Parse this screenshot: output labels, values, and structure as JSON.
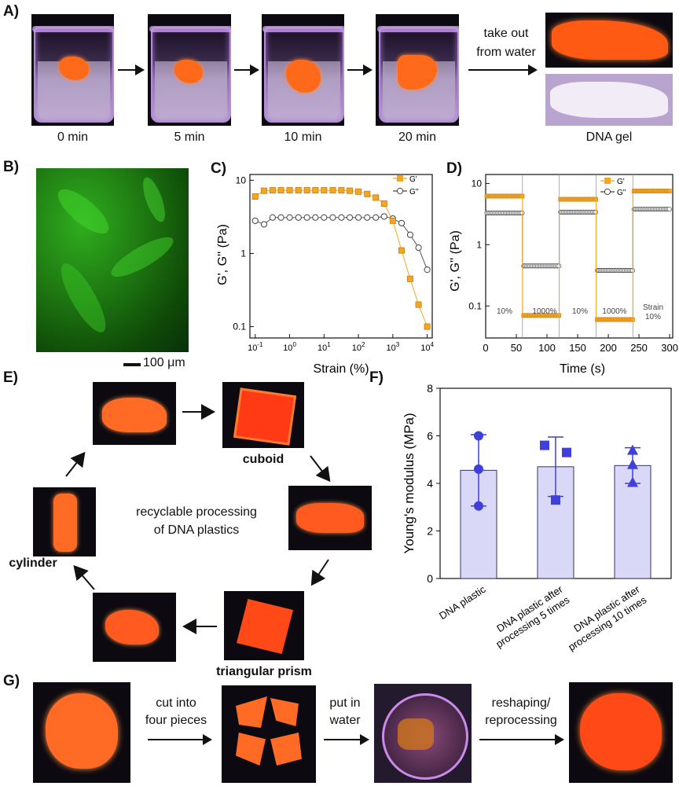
{
  "panelA": {
    "label": "A)",
    "times": [
      "0 min",
      "5 min",
      "10 min",
      "20 min"
    ],
    "arrow_text": [
      "take out",
      "from water"
    ],
    "product_label": "DNA gel"
  },
  "panelB": {
    "label": "B)",
    "scale_bar": "100 μm"
  },
  "panelC": {
    "label": "C)",
    "ylabel": "G', G'' (Pa)",
    "xlabel": "Strain (%)",
    "legend": [
      "G'",
      "G''"
    ]
  },
  "panelD": {
    "label": "D)",
    "ylabel": "G', G'' (Pa)",
    "xlabel": "Time (s)",
    "legend": [
      "G'",
      "G''"
    ],
    "segment_labels": [
      "10%",
      "1000%",
      "10%",
      "1000%",
      "Strain",
      "10%"
    ]
  },
  "panelE": {
    "label": "E)",
    "center_text": [
      "recyclable processing",
      "of DNA plastics"
    ],
    "shape_labels": [
      "cuboid",
      "triangular prism",
      "cylinder"
    ]
  },
  "panelF": {
    "label": "F)",
    "ylabel": "Young's modulus (MPa)",
    "categories": [
      "DNA plastic",
      "DNA plastic after processing 5 times",
      "DNA plastic after processing 10 times"
    ],
    "category_lines": [
      [
        "DNA plastic"
      ],
      [
        "DNA plastic after",
        "processing 5 times"
      ],
      [
        "DNA plastic after",
        "processing 10 times"
      ]
    ]
  },
  "panelG": {
    "label": "G)",
    "steps": [
      [
        "cut into",
        "four pieces"
      ],
      [
        "put in",
        "water"
      ],
      [
        "reshaping/",
        "reprocessing"
      ]
    ]
  },
  "colors": {
    "orange": "#f5a524",
    "gray": "#666666",
    "bar_fill": "#d9d9f7",
    "bar_stroke": "#333366",
    "marker_blue": "#3f3fdb"
  },
  "chart_data": [
    {
      "id": "C",
      "type": "scatter",
      "xlabel": "Strain (%)",
      "ylabel": "G', G'' (Pa)",
      "xscale": "log",
      "yscale": "log",
      "xlim": [
        0.07,
        14000
      ],
      "ylim": [
        0.07,
        12
      ],
      "series": [
        {
          "name": "G'",
          "x": [
            0.1,
            0.18,
            0.32,
            0.56,
            1,
            1.8,
            3.2,
            5.6,
            10,
            18,
            32,
            56,
            100,
            180,
            320,
            560,
            1000,
            1800,
            3200,
            5600,
            10000
          ],
          "y": [
            6.0,
            7.2,
            7.3,
            7.3,
            7.3,
            7.3,
            7.3,
            7.3,
            7.3,
            7.3,
            7.3,
            7.2,
            7.0,
            6.5,
            5.8,
            4.8,
            2.8,
            1.1,
            0.45,
            0.2,
            0.1
          ]
        },
        {
          "name": "G''",
          "x": [
            0.1,
            0.18,
            0.32,
            0.56,
            1,
            1.8,
            3.2,
            5.6,
            10,
            18,
            32,
            56,
            100,
            180,
            320,
            560,
            1000,
            1800,
            3200,
            5600,
            10000
          ],
          "y": [
            2.8,
            2.5,
            3.1,
            3.1,
            3.1,
            3.1,
            3.1,
            3.1,
            3.1,
            3.1,
            3.1,
            3.1,
            3.1,
            3.1,
            3.1,
            3.2,
            3.0,
            2.6,
            1.8,
            1.2,
            0.6
          ]
        }
      ]
    },
    {
      "id": "D",
      "type": "line",
      "xlabel": "Time (s)",
      "ylabel": "G', G'' (Pa)",
      "yscale": "log",
      "xlim": [
        0,
        305
      ],
      "ylim": [
        0.03,
        14
      ],
      "xticks": [
        0,
        50,
        100,
        150,
        200,
        250,
        300
      ],
      "series": [
        {
          "name": "G'",
          "segments": [
            [
              0,
              60,
              6.2
            ],
            [
              60,
              120,
              0.07
            ],
            [
              120,
              180,
              5.5
            ],
            [
              180,
              240,
              0.06
            ],
            [
              240,
              300,
              7.5
            ]
          ]
        },
        {
          "name": "G''",
          "segments": [
            [
              0,
              60,
              3.3
            ],
            [
              60,
              120,
              0.45
            ],
            [
              120,
              180,
              3.4
            ],
            [
              180,
              240,
              0.38
            ],
            [
              240,
              300,
              3.8
            ]
          ]
        }
      ]
    },
    {
      "id": "F",
      "type": "bar",
      "categories": [
        "DNA plastic",
        "DNA plastic after processing 5 times",
        "DNA plastic after processing 10 times"
      ],
      "values": [
        4.55,
        4.7,
        4.75
      ],
      "errors": [
        1.5,
        1.25,
        0.75
      ],
      "points": [
        [
          6.0,
          4.6,
          3.05
        ],
        [
          5.6,
          5.3,
          3.3
        ],
        [
          5.4,
          4.8,
          4.05
        ]
      ],
      "ylabel": "Young's modulus (MPa)",
      "ylim": [
        0,
        8
      ],
      "yticks": [
        0,
        2,
        4,
        6,
        8
      ]
    }
  ]
}
